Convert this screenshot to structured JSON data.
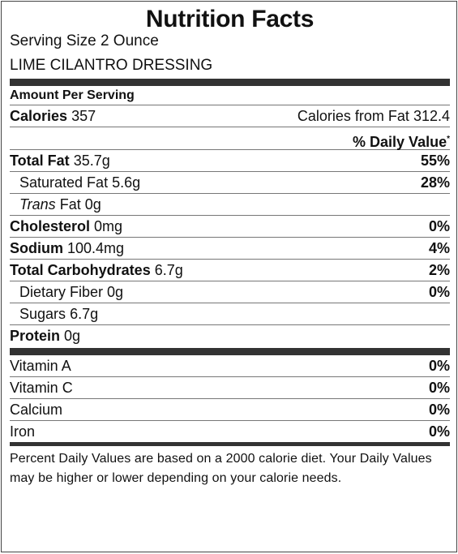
{
  "title": "Nutrition Facts",
  "serving_size": "Serving Size 2 Ounce",
  "product_name": "LIME CILANTRO DRESSING",
  "amount_per_serving": "Amount Per Serving",
  "calories": {
    "label": "Calories",
    "value": "357",
    "from_fat_label": "Calories from Fat",
    "from_fat_value": "312.4"
  },
  "daily_value_header": "% Daily Value",
  "daily_value_asterisk": "*",
  "nutrients": [
    {
      "label": "Total Fat",
      "amount": "35.7g",
      "percent": "55%"
    },
    {
      "label": "Saturated Fat",
      "amount": "5.6g",
      "percent": "28%"
    },
    {
      "label_italic": "Trans",
      "label": "Fat",
      "amount": "0g",
      "percent": ""
    },
    {
      "label": "Cholesterol",
      "amount": "0mg",
      "percent": "0%"
    },
    {
      "label": "Sodium",
      "amount": "100.4mg",
      "percent": "4%"
    },
    {
      "label": "Total Carbohydrates",
      "amount": "6.7g",
      "percent": "2%"
    },
    {
      "label": "Dietary Fiber",
      "amount": "0g",
      "percent": "0%"
    },
    {
      "label": "Sugars",
      "amount": "6.7g",
      "percent": ""
    },
    {
      "label": "Protein",
      "amount": "0g",
      "percent": ""
    }
  ],
  "vitamins": [
    {
      "label": "Vitamin A",
      "percent": "0%"
    },
    {
      "label": "Vitamin C",
      "percent": "0%"
    },
    {
      "label": "Calcium",
      "percent": "0%"
    },
    {
      "label": "Iron",
      "percent": "0%"
    }
  ],
  "footnote": "Percent Daily Values are based on a 2000 calorie diet. Your Daily Values may be higher or lower depending on your calorie needs."
}
